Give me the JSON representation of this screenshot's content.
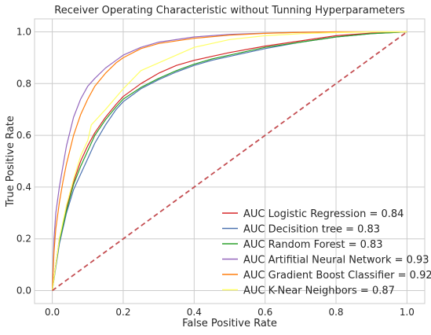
{
  "chart_data": {
    "type": "line",
    "title": "Receiver Operating Characteristic without Tunning Hyperparameters",
    "xlabel": "False Positive Rate",
    "ylabel": "True Positive Rate",
    "xlim": [
      -0.05,
      1.05
    ],
    "ylim": [
      -0.05,
      1.05
    ],
    "xticks": [
      "0.0",
      "0.2",
      "0.4",
      "0.6",
      "0.8",
      "1.0"
    ],
    "yticks": [
      "0.0",
      "0.2",
      "0.4",
      "0.6",
      "0.8",
      "1.0"
    ],
    "grid": true,
    "legend_position": "lower-right",
    "series": [
      {
        "name": "AUC Logistic Regression = 0.84",
        "color": "#d62728",
        "x": [
          0,
          0.01,
          0.02,
          0.04,
          0.06,
          0.08,
          0.1,
          0.12,
          0.15,
          0.18,
          0.2,
          0.25,
          0.3,
          0.35,
          0.4,
          0.45,
          0.5,
          0.6,
          0.7,
          0.8,
          0.9,
          1.0
        ],
        "y": [
          0,
          0.1,
          0.2,
          0.32,
          0.42,
          0.5,
          0.56,
          0.61,
          0.67,
          0.72,
          0.75,
          0.8,
          0.84,
          0.87,
          0.89,
          0.905,
          0.92,
          0.945,
          0.965,
          0.985,
          0.995,
          1.0
        ]
      },
      {
        "name": "AUC Decisition tree = 0.83",
        "color": "#4c72b0",
        "x": [
          0,
          0.01,
          0.02,
          0.04,
          0.06,
          0.08,
          0.1,
          0.12,
          0.15,
          0.18,
          0.2,
          0.25,
          0.3,
          0.35,
          0.4,
          0.45,
          0.5,
          0.6,
          0.7,
          0.8,
          0.9,
          1.0
        ],
        "y": [
          0,
          0.09,
          0.18,
          0.3,
          0.39,
          0.45,
          0.51,
          0.57,
          0.64,
          0.7,
          0.73,
          0.78,
          0.815,
          0.845,
          0.87,
          0.89,
          0.905,
          0.935,
          0.96,
          0.98,
          0.993,
          1.0
        ]
      },
      {
        "name": "AUC Random Forest = 0.83",
        "color": "#2ca02c",
        "x": [
          0,
          0.01,
          0.02,
          0.04,
          0.06,
          0.08,
          0.1,
          0.12,
          0.15,
          0.18,
          0.2,
          0.25,
          0.3,
          0.35,
          0.4,
          0.45,
          0.5,
          0.6,
          0.7,
          0.8,
          0.9,
          1.0
        ],
        "y": [
          0,
          0.1,
          0.19,
          0.31,
          0.41,
          0.48,
          0.54,
          0.6,
          0.66,
          0.71,
          0.74,
          0.785,
          0.82,
          0.85,
          0.875,
          0.895,
          0.91,
          0.94,
          0.96,
          0.98,
          0.993,
          1.0
        ]
      },
      {
        "name": "AUC Artifitial Neural Network = 0.93",
        "color": "#9467bd",
        "x": [
          0,
          0.005,
          0.01,
          0.02,
          0.03,
          0.04,
          0.06,
          0.08,
          0.1,
          0.12,
          0.15,
          0.18,
          0.2,
          0.25,
          0.3,
          0.4,
          0.5,
          0.6,
          0.7,
          0.8,
          0.9,
          1.0
        ],
        "y": [
          0,
          0.2,
          0.3,
          0.4,
          0.48,
          0.56,
          0.67,
          0.74,
          0.79,
          0.82,
          0.86,
          0.89,
          0.91,
          0.94,
          0.96,
          0.98,
          0.99,
          0.995,
          0.998,
          1.0,
          1.0,
          1.0
        ]
      },
      {
        "name": "AUC Gradient Boost Classifier = 0.92",
        "color": "#ff7f0e",
        "x": [
          0,
          0.005,
          0.01,
          0.02,
          0.03,
          0.04,
          0.06,
          0.08,
          0.1,
          0.12,
          0.15,
          0.18,
          0.2,
          0.25,
          0.3,
          0.4,
          0.5,
          0.6,
          0.7,
          0.8,
          0.9,
          1.0
        ],
        "y": [
          0,
          0.15,
          0.24,
          0.34,
          0.42,
          0.49,
          0.6,
          0.68,
          0.74,
          0.79,
          0.84,
          0.88,
          0.9,
          0.935,
          0.955,
          0.975,
          0.987,
          0.994,
          0.998,
          1.0,
          1.0,
          1.0
        ]
      },
      {
        "name": "AUC K-Near Neighbors = 0.87",
        "color": "#ffff66",
        "x": [
          0,
          0.02,
          0.04,
          0.06,
          0.08,
          0.1,
          0.11,
          0.15,
          0.2,
          0.25,
          0.3,
          0.35,
          0.4,
          0.5,
          0.6,
          0.7,
          0.8,
          0.9,
          1.0
        ],
        "y": [
          0,
          0.2,
          0.33,
          0.43,
          0.52,
          0.58,
          0.64,
          0.7,
          0.78,
          0.85,
          0.88,
          0.91,
          0.94,
          0.97,
          0.985,
          0.993,
          0.997,
          1.0,
          1.0
        ]
      },
      {
        "name": "",
        "color": "#c44e52",
        "dashed": true,
        "x": [
          0,
          1
        ],
        "y": [
          0,
          1
        ]
      }
    ]
  }
}
